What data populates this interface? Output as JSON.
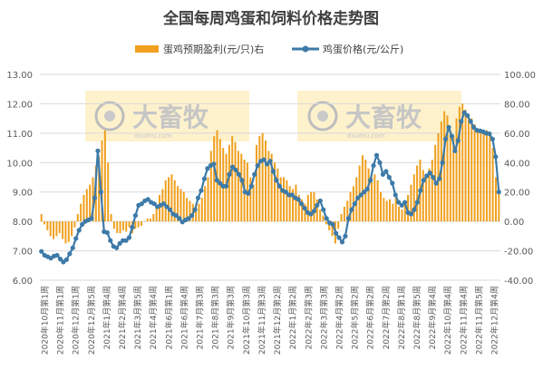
{
  "chart_data": {
    "type": "bar+line",
    "title": "全国每周鸡蛋和饲料价格走势图",
    "watermark": "大畜牧",
    "watermark_url": "dxumu.com",
    "legend_position": "top",
    "y_left": {
      "min": 6.0,
      "max": 13.0,
      "step": 1.0,
      "ticks": [
        "6.00",
        "7.00",
        "8.00",
        "9.00",
        "10.00",
        "11.00",
        "12.00",
        "13.00"
      ]
    },
    "y_right": {
      "min": -40,
      "max": 100,
      "step": 20,
      "ticks": [
        "-40.00",
        "-20.00",
        "0.00",
        "20.00",
        "40.00",
        "60.00",
        "80.00",
        "100.00"
      ]
    },
    "grid": true,
    "x_tick_labels": [
      "2020年10月第1周",
      "2020年11月第1周",
      "2020年12月第1周",
      "2020年12月第5周",
      "2021年1月第4周",
      "2021年2月第4周",
      "2021年3月第5周",
      "2021年4月第4周",
      "2021年6月第1周",
      "2021年6月第4周",
      "2021年7月第3周",
      "2021年8月第3周",
      "2021年9月第3周",
      "2021年10月第3周",
      "2021年11月第3周",
      "2021年12月第2周",
      "2022年1月第2周",
      "2022年2月第3周",
      "2022年3月第3周",
      "2022年4月第2周",
      "2022年5月第2周",
      "2022年6月第2周",
      "2022年7月第2周",
      "2022年8月第1周",
      "2022年8月第5周",
      "2022年9月第4周",
      "2022年10月第4周",
      "2022年11月第4周",
      "2022年11月第5周",
      "2022年12月第4周"
    ],
    "series": [
      {
        "name": "蛋鸡预期盈利(元/只)右",
        "type": "bar",
        "axis": "right",
        "color": "#f0a01e",
        "values": [
          5,
          -2,
          -6,
          -10,
          -12,
          -10,
          -8,
          -12,
          -15,
          -14,
          -10,
          -4,
          5,
          12,
          18,
          22,
          25,
          30,
          38,
          44,
          55,
          62,
          40,
          5,
          -5,
          -8,
          -8,
          -6,
          -7,
          -4,
          -8,
          -5,
          -4,
          -3,
          0,
          2,
          2,
          5,
          10,
          18,
          22,
          28,
          30,
          32,
          28,
          24,
          22,
          20,
          16,
          14,
          12,
          10,
          12,
          16,
          24,
          30,
          48,
          58,
          62,
          56,
          50,
          46,
          52,
          58,
          54,
          48,
          46,
          42,
          40,
          30,
          25,
          52,
          58,
          60,
          55,
          48,
          46,
          40,
          36,
          30,
          30,
          28,
          24,
          22,
          25,
          18,
          15,
          12,
          18,
          20,
          20,
          15,
          8,
          4,
          -2,
          -6,
          -10,
          -15,
          -5,
          5,
          10,
          14,
          20,
          24,
          30,
          38,
          45,
          42,
          36,
          30,
          32,
          28,
          20,
          16,
          14,
          15,
          12,
          16,
          10,
          8,
          12,
          18,
          25,
          32,
          38,
          42,
          35,
          30,
          36,
          42,
          52,
          60,
          68,
          75,
          72,
          60,
          58,
          70,
          78,
          80,
          76,
          72,
          70,
          66,
          62,
          60,
          62,
          62,
          58,
          50,
          30,
          20
        ]
      },
      {
        "name": "鸡蛋价格(元/公斤)",
        "type": "line",
        "axis": "left",
        "color": "#3d7aa8",
        "values": [
          6.98,
          6.85,
          6.8,
          6.75,
          6.82,
          6.85,
          6.72,
          6.62,
          6.7,
          6.9,
          7.1,
          7.42,
          7.7,
          7.9,
          8.0,
          8.05,
          8.1,
          8.8,
          10.4,
          9.0,
          7.65,
          7.62,
          7.35,
          7.15,
          7.1,
          7.25,
          7.35,
          7.35,
          7.45,
          7.8,
          8.2,
          8.55,
          8.6,
          8.7,
          8.75,
          8.65,
          8.6,
          8.5,
          8.55,
          8.6,
          8.5,
          8.4,
          8.25,
          8.2,
          8.1,
          7.98,
          8.05,
          8.1,
          8.2,
          8.4,
          8.8,
          9.05,
          9.45,
          9.8,
          9.9,
          9.95,
          9.4,
          9.3,
          9.2,
          9.2,
          9.6,
          9.85,
          9.75,
          9.6,
          9.4,
          9.0,
          8.95,
          9.2,
          9.6,
          9.9,
          10.05,
          10.1,
          9.95,
          10.05,
          9.7,
          9.4,
          9.2,
          9.05,
          9.0,
          8.9,
          8.9,
          8.8,
          8.75,
          8.6,
          8.45,
          8.3,
          8.25,
          8.35,
          8.55,
          8.7,
          8.4,
          8.1,
          7.95,
          7.9,
          7.6,
          7.45,
          7.3,
          7.5,
          8.1,
          8.4,
          8.6,
          8.8,
          8.9,
          9.0,
          9.1,
          9.4,
          9.9,
          10.25,
          10.0,
          9.6,
          9.7,
          9.5,
          9.3,
          8.9,
          8.65,
          8.55,
          8.65,
          8.3,
          8.25,
          8.4,
          8.65,
          9.05,
          9.4,
          9.55,
          9.65,
          9.5,
          9.3,
          9.45,
          10.0,
          10.8,
          11.2,
          10.9,
          10.4,
          10.75,
          11.4,
          11.7,
          11.6,
          11.4,
          11.2,
          11.1,
          11.08,
          11.05,
          11.0,
          10.98,
          10.8,
          10.2,
          9.0
        ]
      }
    ]
  }
}
